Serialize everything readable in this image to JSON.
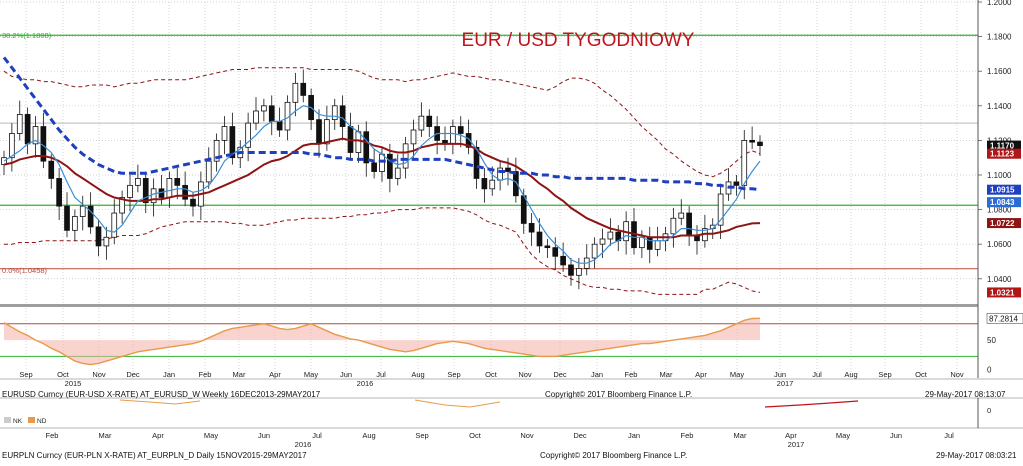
{
  "chart_data": {
    "type": "candlestick",
    "title": "EUR / USD TYGODNIOWY",
    "fib_top_label": "38.2%(1.1808)",
    "fib_bottom_label": "0.0%(1.0458)",
    "ylim": [
      1.026,
      1.2
    ],
    "yticks": [
      "1.2000",
      "1.1800",
      "1.1600",
      "1.1400",
      "1.1200",
      "1.1000",
      "1.0800",
      "1.0600",
      "1.0400"
    ],
    "horizontal_lines": [
      {
        "value": 1.1808,
        "color": "#2db52d"
      },
      {
        "value": 1.13,
        "color": "#b9b9b9"
      },
      {
        "value": 1.0825,
        "color": "#2db52d"
      },
      {
        "value": 1.0458,
        "color": "#b84a3a"
      }
    ],
    "price_boxes": [
      {
        "label": "1.1170",
        "value": 1.117,
        "bg": "#111111",
        "fg": "#ffffff"
      },
      {
        "label": "1.1123",
        "value": 1.1123,
        "bg": "#b01818",
        "fg": "#ffffff"
      },
      {
        "label": "1.0915",
        "value": 1.0915,
        "bg": "#1f3fbf",
        "fg": "#ffffff"
      },
      {
        "label": "1.0843",
        "value": 1.0843,
        "bg": "#2a6bd6",
        "fg": "#ffffff"
      },
      {
        "label": "1.0722",
        "value": 1.0722,
        "bg": "#8e1414",
        "fg": "#ffffff"
      },
      {
        "label": "1.0321",
        "value": 1.0321,
        "bg": "#b01818",
        "fg": "#ffffff"
      }
    ],
    "closes": [
      1.11,
      1.124,
      1.135,
      1.118,
      1.128,
      1.108,
      1.098,
      1.082,
      1.068,
      1.076,
      1.082,
      1.07,
      1.059,
      1.064,
      1.078,
      1.087,
      1.094,
      1.098,
      1.084,
      1.092,
      1.087,
      1.098,
      1.094,
      1.086,
      1.082,
      1.096,
      1.108,
      1.12,
      1.128,
      1.11,
      1.116,
      1.13,
      1.137,
      1.14,
      1.131,
      1.126,
      1.142,
      1.153,
      1.146,
      1.132,
      1.118,
      1.132,
      1.14,
      1.128,
      1.113,
      1.125,
      1.107,
      1.102,
      1.112,
      1.098,
      1.104,
      1.118,
      1.126,
      1.134,
      1.128,
      1.12,
      1.118,
      1.128,
      1.124,
      1.116,
      1.098,
      1.092,
      1.097,
      1.104,
      1.102,
      1.088,
      1.072,
      1.067,
      1.059,
      1.058,
      1.053,
      1.048,
      1.042,
      1.046,
      1.052,
      1.06,
      1.063,
      1.067,
      1.062,
      1.073,
      1.058,
      1.064,
      1.057,
      1.062,
      1.066,
      1.075,
      1.078,
      1.065,
      1.062,
      1.069,
      1.071,
      1.089,
      1.096,
      1.094,
      1.12,
      1.119,
      1.117
    ],
    "ma_fast": [
      1.108,
      1.111,
      1.114,
      1.118,
      1.12,
      1.117,
      1.113,
      1.106,
      1.096,
      1.087,
      1.083,
      1.079,
      1.074,
      1.068,
      1.067,
      1.071,
      1.078,
      1.085,
      1.087,
      1.089,
      1.09,
      1.091,
      1.092,
      1.092,
      1.09,
      1.091,
      1.094,
      1.1,
      1.108,
      1.112,
      1.115,
      1.119,
      1.123,
      1.128,
      1.131,
      1.131,
      1.133,
      1.137,
      1.14,
      1.139,
      1.135,
      1.134,
      1.134,
      1.133,
      1.128,
      1.125,
      1.12,
      1.115,
      1.112,
      1.108,
      1.106,
      1.107,
      1.111,
      1.117,
      1.121,
      1.124,
      1.124,
      1.124,
      1.123,
      1.121,
      1.115,
      1.107,
      1.1,
      1.097,
      1.098,
      1.096,
      1.088,
      1.08,
      1.072,
      1.065,
      1.06,
      1.056,
      1.051,
      1.049,
      1.049,
      1.051,
      1.055,
      1.06,
      1.062,
      1.065,
      1.064,
      1.064,
      1.062,
      1.062,
      1.062,
      1.065,
      1.069,
      1.069,
      1.068,
      1.068,
      1.069,
      1.074,
      1.08,
      1.086,
      1.095,
      1.102,
      1.108
    ],
    "ma_mid": [
      1.106,
      1.107,
      1.109,
      1.11,
      1.111,
      1.111,
      1.11,
      1.108,
      1.105,
      1.101,
      1.098,
      1.095,
      1.092,
      1.089,
      1.087,
      1.086,
      1.085,
      1.085,
      1.085,
      1.086,
      1.086,
      1.087,
      1.088,
      1.088,
      1.088,
      1.089,
      1.09,
      1.092,
      1.094,
      1.096,
      1.098,
      1.1,
      1.103,
      1.106,
      1.108,
      1.109,
      1.111,
      1.114,
      1.117,
      1.118,
      1.118,
      1.119,
      1.12,
      1.121,
      1.12,
      1.12,
      1.119,
      1.117,
      1.116,
      1.114,
      1.113,
      1.113,
      1.114,
      1.116,
      1.117,
      1.118,
      1.118,
      1.118,
      1.118,
      1.117,
      1.115,
      1.112,
      1.11,
      1.108,
      1.107,
      1.105,
      1.102,
      1.099,
      1.095,
      1.092,
      1.088,
      1.085,
      1.081,
      1.078,
      1.075,
      1.073,
      1.071,
      1.069,
      1.068,
      1.067,
      1.066,
      1.065,
      1.064,
      1.064,
      1.064,
      1.064,
      1.065,
      1.065,
      1.065,
      1.066,
      1.066,
      1.067,
      1.068,
      1.07,
      1.071,
      1.072,
      1.0722
    ],
    "ma_slow": [
      1.168,
      1.162,
      1.156,
      1.15,
      1.144,
      1.138,
      1.132,
      1.126,
      1.121,
      1.116,
      1.112,
      1.109,
      1.106,
      1.104,
      1.102,
      1.101,
      1.101,
      1.101,
      1.101,
      1.102,
      1.103,
      1.104,
      1.105,
      1.106,
      1.107,
      1.108,
      1.109,
      1.11,
      1.111,
      1.112,
      1.113,
      1.113,
      1.113,
      1.113,
      1.113,
      1.113,
      1.113,
      1.113,
      1.113,
      1.112,
      1.112,
      1.111,
      1.11,
      1.11,
      1.109,
      1.109,
      1.109,
      1.108,
      1.108,
      1.108,
      1.109,
      1.109,
      1.109,
      1.109,
      1.109,
      1.109,
      1.109,
      1.108,
      1.107,
      1.106,
      1.105,
      1.104,
      1.103,
      1.102,
      1.102,
      1.101,
      1.101,
      1.101,
      1.1,
      1.1,
      1.099,
      1.099,
      1.098,
      1.098,
      1.098,
      1.098,
      1.098,
      1.098,
      1.098,
      1.098,
      1.097,
      1.097,
      1.097,
      1.097,
      1.096,
      1.096,
      1.096,
      1.096,
      1.095,
      1.095,
      1.094,
      1.094,
      1.093,
      1.093,
      1.092,
      1.092,
      1.0915
    ],
    "boll_upper": [
      1.16,
      1.157,
      1.156,
      1.155,
      1.155,
      1.154,
      1.154,
      1.153,
      1.152,
      1.151,
      1.151,
      1.152,
      1.152,
      1.152,
      1.151,
      1.152,
      1.153,
      1.153,
      1.154,
      1.155,
      1.155,
      1.155,
      1.155,
      1.155,
      1.156,
      1.157,
      1.158,
      1.159,
      1.16,
      1.161,
      1.161,
      1.161,
      1.162,
      1.162,
      1.162,
      1.162,
      1.162,
      1.162,
      1.162,
      1.161,
      1.161,
      1.161,
      1.161,
      1.161,
      1.161,
      1.16,
      1.158,
      1.156,
      1.155,
      1.155,
      1.155,
      1.154,
      1.155,
      1.155,
      1.156,
      1.157,
      1.158,
      1.159,
      1.158,
      1.157,
      1.157,
      1.156,
      1.155,
      1.155,
      1.154,
      1.153,
      1.152,
      1.151,
      1.15,
      1.149,
      1.151,
      1.154,
      1.156,
      1.156,
      1.155,
      1.153,
      1.149,
      1.146,
      1.142,
      1.138,
      1.133,
      1.128,
      1.124,
      1.12,
      1.115,
      1.112,
      1.108,
      1.105,
      1.102,
      1.1,
      1.099,
      1.101,
      1.104,
      1.108,
      1.112,
      1.114,
      1.1123
    ],
    "boll_lower": [
      1.06,
      1.06,
      1.061,
      1.061,
      1.061,
      1.062,
      1.062,
      1.062,
      1.062,
      1.062,
      1.062,
      1.062,
      1.062,
      1.063,
      1.064,
      1.065,
      1.065,
      1.065,
      1.066,
      1.068,
      1.07,
      1.071,
      1.072,
      1.073,
      1.073,
      1.073,
      1.073,
      1.073,
      1.073,
      1.072,
      1.072,
      1.071,
      1.071,
      1.071,
      1.072,
      1.073,
      1.074,
      1.074,
      1.075,
      1.075,
      1.075,
      1.075,
      1.075,
      1.076,
      1.076,
      1.077,
      1.077,
      1.078,
      1.078,
      1.079,
      1.08,
      1.08,
      1.08,
      1.081,
      1.081,
      1.081,
      1.081,
      1.081,
      1.08,
      1.079,
      1.077,
      1.074,
      1.072,
      1.071,
      1.069,
      1.067,
      1.06,
      1.054,
      1.05,
      1.047,
      1.045,
      1.042,
      1.04,
      1.038,
      1.036,
      1.035,
      1.035,
      1.034,
      1.034,
      1.033,
      1.033,
      1.033,
      1.032,
      1.031,
      1.031,
      1.031,
      1.031,
      1.031,
      1.031,
      1.034,
      1.034,
      1.036,
      1.038,
      1.037,
      1.035,
      1.033,
      1.0321
    ],
    "indicator": {
      "ylim": [
        -15,
        105
      ],
      "yticks": [
        "50",
        "0"
      ],
      "value_label": "87.2814",
      "levels": [
        {
          "value": 78,
          "color": "#b84a3a"
        },
        {
          "value": 22,
          "color": "#2db52d"
        }
      ],
      "line": [
        80,
        72,
        64,
        58,
        50,
        44,
        36,
        30,
        22,
        14,
        10,
        8,
        10,
        14,
        18,
        22,
        26,
        30,
        32,
        34,
        36,
        38,
        40,
        42,
        44,
        48,
        54,
        60,
        66,
        70,
        72,
        74,
        76,
        78,
        74,
        70,
        68,
        70,
        74,
        78,
        72,
        66,
        60,
        56,
        52,
        50,
        46,
        42,
        38,
        34,
        32,
        30,
        32,
        36,
        40,
        44,
        46,
        48,
        46,
        44,
        40,
        36,
        34,
        32,
        30,
        28,
        26,
        24,
        22,
        22,
        22,
        24,
        26,
        28,
        30,
        32,
        34,
        36,
        38,
        40,
        42,
        44,
        44,
        46,
        48,
        50,
        52,
        54,
        56,
        58,
        62,
        66,
        72,
        78,
        84,
        87,
        87.3
      ]
    },
    "x_month_labels": [
      "Sep",
      "Oct",
      "Nov",
      "Dec",
      "Jan",
      "Feb",
      "Mar",
      "Apr",
      "May",
      "Jun",
      "Jul",
      "Aug",
      "Sep",
      "Oct",
      "Nov",
      "Dec",
      "Jan",
      "Feb",
      "Mar",
      "Apr",
      "May",
      "Jun",
      "Jul",
      "Aug",
      "Sep",
      "Oct",
      "Nov"
    ],
    "x_year_labels": [
      "2015",
      "2016",
      "2017"
    ]
  },
  "footer1": {
    "left": "EURUSD Curncy (EUR-USD X-RATE) AT_EURUSD_W  Weekly 16DEC2013-29MAY2017",
    "center": "Copyright© 2017 Bloomberg Finance L.P.",
    "right": "29-May-2017 08:13:07"
  },
  "footer2": {
    "legend_left": "NK",
    "legend_right": "ND",
    "axis_right": "0",
    "months": [
      "Feb",
      "Mar",
      "Apr",
      "May",
      "Jun",
      "Jul",
      "Aug",
      "Sep",
      "Oct",
      "Nov",
      "Dec",
      "Jan",
      "Feb",
      "Mar",
      "Apr",
      "May",
      "Jun",
      "Jul"
    ],
    "years": [
      "2016",
      "2017"
    ],
    "left": "EURPLN Curncy (EUR-PLN X-RATE) AT_EURPLN_D  Daily 15NOV2015-29MAY2017",
    "center": "Copyright© 2017 Bloomberg Finance L.P.",
    "right": "29-May-2017 08:03:21"
  },
  "colors": {
    "candle_up": "#ffffff",
    "candle_down": "#111111",
    "ma_fast": "#3a8fd6",
    "ma_mid": "#8e1414",
    "ma_slow": "#1f3fbf",
    "boll": "#8e1414",
    "title": "#c0141c",
    "indicator_line": "#e89a4a",
    "indicator_fill_down": "#f4b0a8",
    "indicator_fill_up": "#d8d8d8"
  }
}
